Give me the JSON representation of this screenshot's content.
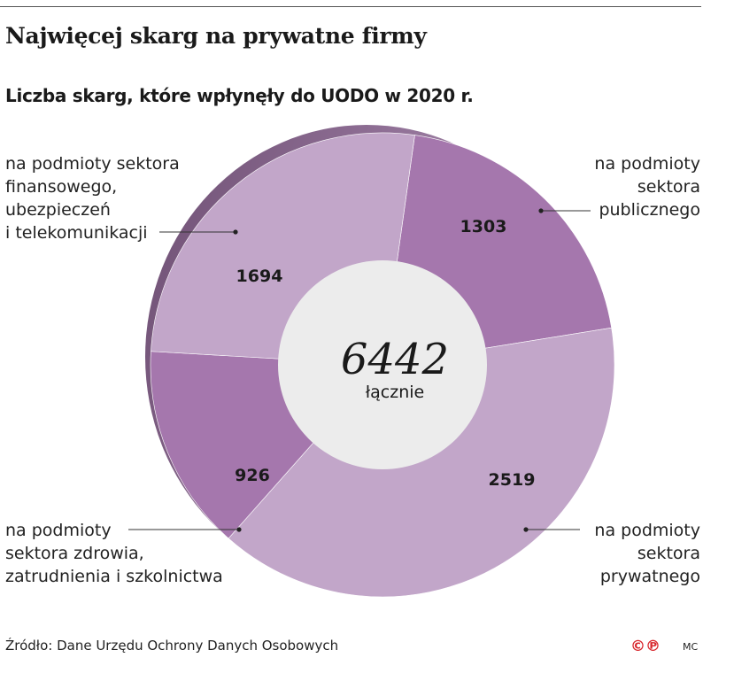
{
  "header": {
    "title": "Najwięcej skarg na prywatne firmy",
    "subtitle": "Liczba skarg, które wpłynęły do UODO w 2020 r."
  },
  "chart_data": {
    "type": "pie",
    "variant": "donut",
    "total": {
      "value": "6442",
      "label": "łącznie"
    },
    "slices": [
      {
        "value": 1303,
        "label_lines": [
          "na podmioty",
          "sektora",
          "publicznego"
        ],
        "color": "#a577ad"
      },
      {
        "value": 2519,
        "label_lines": [
          "na podmioty",
          "sektora",
          "prywatnego"
        ],
        "color": "#c2a6c9"
      },
      {
        "value": 926,
        "label_lines": [
          "na podmioty",
          "sektora zdrowia,",
          "zatrudnienia i szkolnictwa"
        ],
        "color": "#a577ad"
      },
      {
        "value": 1694,
        "label_lines": [
          "na podmioty sektora",
          "finansowego,",
          "ubezpieczeń",
          "i telekomunikacji"
        ],
        "color": "#c2a6c9"
      }
    ]
  },
  "footer": {
    "source": "Źródło: Dane Urzędu Ochrony Danych Osobowych",
    "logo": "©℗",
    "author": "MC"
  }
}
